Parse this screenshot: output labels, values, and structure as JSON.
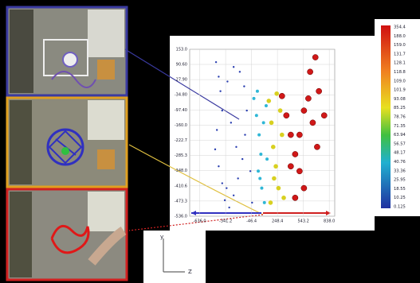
{
  "chart_data": {
    "type": "scatter",
    "xlim": [
      -750,
      900
    ],
    "ylim": [
      -536,
      153
    ],
    "xticks": [
      {
        "value": -636,
        "label": "-636.0"
      },
      -341.2,
      -46.4,
      248.4,
      543.2,
      {
        "value": 838,
        "label": "838.0"
      }
    ],
    "yticks": [
      {
        "value": 153,
        "label": "153.0"
      },
      {
        "value": 90.6,
        "label": "90.60"
      },
      {
        "value": 27.9,
        "label": "27.90"
      },
      {
        "value": -34.8,
        "label": "-34.80"
      },
      {
        "value": -97.4,
        "label": "-97.40"
      },
      {
        "value": -160,
        "label": "-160.0"
      },
      -222.7,
      -285.3,
      {
        "value": -348,
        "label": "-348.0"
      },
      -410.6,
      -473.3,
      {
        "value": -536,
        "label": "-536.0"
      }
    ],
    "grid": true,
    "series": [
      {
        "color": "#2a3fb0",
        "x": [
          -450,
          -420,
          -400,
          -380,
          -440,
          -460,
          -420,
          -380,
          -350,
          -300,
          -250,
          -200,
          -150,
          -120,
          -100,
          -130,
          -180,
          -250,
          -320,
          -280,
          -220,
          -60,
          -40,
          -330
        ],
        "values": [
          100,
          40,
          -20,
          -100,
          -180,
          -260,
          -330,
          -400,
          -470,
          -500,
          -450,
          -380,
          -300,
          -200,
          -100,
          0,
          60,
          80,
          20,
          -150,
          -250,
          -350,
          -480,
          -420
        ]
      },
      {
        "color": "#2fb7d6",
        "x": [
          -20,
          10,
          40,
          60,
          30,
          70,
          100,
          20,
          90,
          120,
          50,
          130
        ],
        "values": [
          -50,
          -120,
          -200,
          -280,
          -350,
          -420,
          -480,
          -20,
          -150,
          -80,
          -380,
          -300
        ]
      },
      {
        "color": "#d8d020",
        "x": [
          150,
          180,
          200,
          230,
          260,
          170,
          280,
          300,
          320,
          240,
          210
        ],
        "values": [
          -60,
          -150,
          -250,
          -330,
          -420,
          -480,
          -100,
          -200,
          -460,
          -30,
          -380
        ]
      },
      {
        "color": "#d01818",
        "x": [
          300,
          350,
          400,
          450,
          500,
          550,
          600,
          650,
          700,
          550,
          450,
          620,
          680,
          720,
          780,
          400,
          500
        ],
        "values": [
          -40,
          -120,
          -200,
          -280,
          -350,
          -100,
          -50,
          -150,
          -250,
          -420,
          -460,
          60,
          120,
          -20,
          -120,
          -330,
          -200
        ]
      }
    ],
    "colorbar_ticks": [
      354.4,
      {
        "value": 188,
        "label": "188.0"
      },
      {
        "value": 159,
        "label": "159.0"
      },
      131.7,
      128.1,
      118.8,
      {
        "value": 109,
        "label": "109.0"
      },
      101.9,
      93.08,
      85.25,
      78.76,
      71.35,
      63.94,
      56.57,
      48.17,
      40.76,
      33.36,
      25.95,
      18.55,
      10.25,
      0.125
    ]
  },
  "axes_indicator": {
    "vertical": "y",
    "horizontal": "Z"
  }
}
